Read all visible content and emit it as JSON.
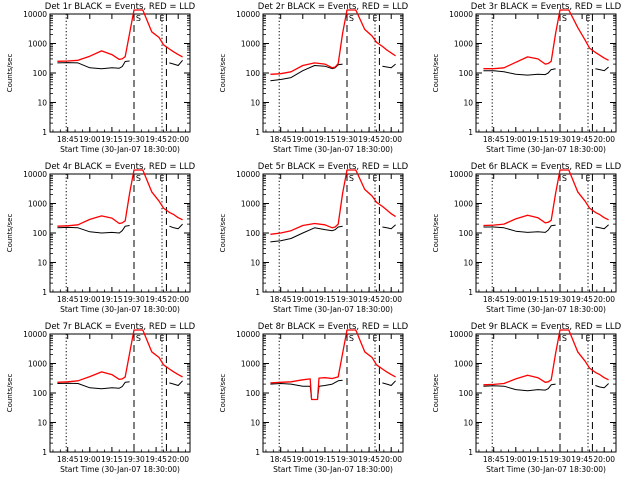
{
  "figure": {
    "xlabel": "Start Time (30-Jan-07 18:30:00)",
    "ylabel": "Counts/sec",
    "x_ticks": [
      "18:45",
      "19:00",
      "19:15",
      "19:30",
      "19:45",
      "20:00"
    ],
    "y_ticks": [
      "1",
      "10",
      "100",
      "1000",
      "10000"
    ],
    "colors": {
      "events": "#000000",
      "lld": "#ff0000",
      "axes": "#000000"
    }
  },
  "chart_data": [
    {
      "type": "line",
      "title": "Det 1r BLACK = Events, RED = LLD",
      "x": [
        "18:38",
        "18:45",
        "18:52",
        "19:00",
        "19:08",
        "19:15",
        "19:20",
        "19:22",
        "19:24",
        "19:27",
        "19:30",
        "19:32",
        "19:36",
        "19:42",
        "19:47",
        "19:50",
        "19:54",
        "19:57",
        "20:00",
        "20:03"
      ],
      "x_range": [
        "18:33",
        "20:08"
      ],
      "ylim": [
        1,
        10000
      ],
      "yscale": "log",
      "series": [
        {
          "name": "Events",
          "values": [
            220,
            225,
            220,
            150,
            140,
            150,
            145,
            165,
            245,
            255,
            null,
            null,
            null,
            null,
            null,
            null,
            220,
            200,
            180,
            270
          ]
        },
        {
          "name": "LLD",
          "values": [
            250,
            255,
            270,
            370,
            560,
            420,
            290,
            300,
            360,
            2200,
            15000,
            15000,
            15000,
            2500,
            1600,
            900,
            650,
            520,
            420,
            350
          ]
        }
      ],
      "vlines": [
        {
          "x": "18:44",
          "style": "dotted"
        },
        {
          "x": "19:30",
          "style": "dashed"
        },
        {
          "x": "19:49",
          "style": "dotted"
        },
        {
          "x": "19:52",
          "style": "dashed"
        }
      ],
      "markers": [
        {
          "x": "19:33",
          "label": "S"
        },
        {
          "x": "19:49",
          "label": "E"
        }
      ]
    },
    {
      "type": "line",
      "title": "Det 2r BLACK = Events, RED = LLD",
      "x": [
        "18:38",
        "18:45",
        "18:52",
        "19:00",
        "19:08",
        "19:15",
        "19:20",
        "19:22",
        "19:24",
        "19:27",
        "19:30",
        "19:32",
        "19:36",
        "19:42",
        "19:47",
        "19:50",
        "19:54",
        "19:57",
        "20:00",
        "20:03"
      ],
      "x_range": [
        "18:33",
        "20:08"
      ],
      "ylim": [
        1,
        10000
      ],
      "yscale": "log",
      "series": [
        {
          "name": "Events",
          "values": [
            55,
            60,
            70,
            120,
            180,
            170,
            140,
            150,
            190,
            200,
            null,
            null,
            null,
            null,
            null,
            null,
            170,
            160,
            150,
            200
          ]
        },
        {
          "name": "LLD",
          "values": [
            90,
            95,
            110,
            180,
            220,
            200,
            150,
            160,
            210,
            2200,
            15000,
            15000,
            15000,
            3000,
            1800,
            1100,
            800,
            600,
            480,
            380
          ]
        }
      ],
      "vlines": [
        {
          "x": "18:44",
          "style": "dotted"
        },
        {
          "x": "19:30",
          "style": "dashed"
        },
        {
          "x": "19:49",
          "style": "dotted"
        },
        {
          "x": "19:52",
          "style": "dashed"
        }
      ],
      "markers": [
        {
          "x": "19:33",
          "label": "S"
        },
        {
          "x": "19:49",
          "label": "E"
        }
      ]
    },
    {
      "type": "line",
      "title": "Det 3r BLACK = Events, RED = LLD",
      "x": [
        "18:38",
        "18:45",
        "18:52",
        "19:00",
        "19:08",
        "19:15",
        "19:20",
        "19:22",
        "19:24",
        "19:27",
        "19:30",
        "19:32",
        "19:36",
        "19:42",
        "19:47",
        "19:50",
        "19:54",
        "19:57",
        "20:00",
        "20:03"
      ],
      "x_range": [
        "18:33",
        "20:08"
      ],
      "ylim": [
        1,
        10000
      ],
      "yscale": "log",
      "series": [
        {
          "name": "Events",
          "values": [
            120,
            120,
            110,
            90,
            85,
            90,
            88,
            100,
            130,
            140,
            null,
            null,
            null,
            null,
            null,
            null,
            140,
            130,
            120,
            160
          ]
        },
        {
          "name": "LLD",
          "values": [
            140,
            140,
            150,
            230,
            350,
            300,
            200,
            210,
            250,
            2200,
            15000,
            15000,
            15000,
            3500,
            1300,
            700,
            500,
            400,
            320,
            270
          ]
        }
      ],
      "vlines": [
        {
          "x": "18:44",
          "style": "dotted"
        },
        {
          "x": "19:30",
          "style": "dashed"
        },
        {
          "x": "19:49",
          "style": "dotted"
        },
        {
          "x": "19:52",
          "style": "dashed"
        }
      ],
      "markers": [
        {
          "x": "19:33",
          "label": "S"
        },
        {
          "x": "19:49",
          "label": "E"
        }
      ]
    },
    {
      "type": "line",
      "title": "Det 4r BLACK = Events, RED = LLD",
      "x": [
        "18:38",
        "18:45",
        "18:52",
        "19:00",
        "19:08",
        "19:15",
        "19:20",
        "19:22",
        "19:24",
        "19:27",
        "19:30",
        "19:32",
        "19:36",
        "19:42",
        "19:47",
        "19:50",
        "19:54",
        "19:57",
        "20:00",
        "20:03"
      ],
      "x_range": [
        "18:33",
        "20:08"
      ],
      "ylim": [
        1,
        10000
      ],
      "yscale": "log",
      "series": [
        {
          "name": "Events",
          "values": [
            150,
            155,
            150,
            110,
            100,
            105,
            100,
            120,
            170,
            180,
            null,
            null,
            null,
            null,
            null,
            null,
            170,
            150,
            140,
            200
          ]
        },
        {
          "name": "LLD",
          "values": [
            170,
            175,
            190,
            290,
            380,
            320,
            210,
            220,
            260,
            2200,
            15000,
            15000,
            15000,
            2500,
            1200,
            700,
            500,
            420,
            330,
            280
          ]
        }
      ],
      "vlines": [
        {
          "x": "18:44",
          "style": "dotted"
        },
        {
          "x": "19:30",
          "style": "dashed"
        },
        {
          "x": "19:49",
          "style": "dotted"
        },
        {
          "x": "19:52",
          "style": "dashed"
        }
      ],
      "markers": [
        {
          "x": "19:33",
          "label": "S"
        },
        {
          "x": "19:49",
          "label": "E"
        }
      ]
    },
    {
      "type": "line",
      "title": "Det 5r BLACK = Events, RED = LLD",
      "x": [
        "18:38",
        "18:45",
        "18:52",
        "19:00",
        "19:08",
        "19:15",
        "19:20",
        "19:22",
        "19:24",
        "19:27",
        "19:30",
        "19:32",
        "19:36",
        "19:42",
        "19:47",
        "19:50",
        "19:54",
        "19:57",
        "20:00",
        "20:03"
      ],
      "x_range": [
        "18:33",
        "20:08"
      ],
      "ylim": [
        1,
        10000
      ],
      "yscale": "log",
      "series": [
        {
          "name": "Events",
          "values": [
            50,
            55,
            65,
            100,
            150,
            130,
            120,
            130,
            160,
            170,
            null,
            null,
            null,
            null,
            null,
            null,
            160,
            150,
            140,
            190
          ]
        },
        {
          "name": "LLD",
          "values": [
            90,
            100,
            120,
            180,
            210,
            190,
            150,
            160,
            200,
            2200,
            15000,
            15000,
            15000,
            3000,
            1800,
            1100,
            800,
            600,
            450,
            360
          ]
        }
      ],
      "vlines": [
        {
          "x": "18:44",
          "style": "dotted"
        },
        {
          "x": "19:30",
          "style": "dashed"
        },
        {
          "x": "19:49",
          "style": "dotted"
        },
        {
          "x": "19:52",
          "style": "dashed"
        }
      ],
      "markers": [
        {
          "x": "19:33",
          "label": "S"
        },
        {
          "x": "19:49",
          "label": "E"
        }
      ]
    },
    {
      "type": "line",
      "title": "Det 6r BLACK = Events, RED = LLD",
      "x": [
        "18:38",
        "18:45",
        "18:52",
        "19:00",
        "19:08",
        "19:15",
        "19:20",
        "19:22",
        "19:24",
        "19:27",
        "19:30",
        "19:32",
        "19:36",
        "19:42",
        "19:47",
        "19:50",
        "19:54",
        "19:57",
        "20:00",
        "20:03"
      ],
      "x_range": [
        "18:33",
        "20:08"
      ],
      "ylim": [
        1,
        10000
      ],
      "yscale": "log",
      "series": [
        {
          "name": "Events",
          "values": [
            160,
            160,
            150,
            115,
            105,
            110,
            105,
            125,
            175,
            185,
            null,
            null,
            null,
            null,
            null,
            null,
            160,
            150,
            140,
            190
          ]
        },
        {
          "name": "LLD",
          "values": [
            180,
            185,
            200,
            300,
            400,
            330,
            220,
            230,
            270,
            2200,
            15000,
            15000,
            15000,
            2500,
            1200,
            700,
            500,
            420,
            330,
            280
          ]
        }
      ],
      "vlines": [
        {
          "x": "18:44",
          "style": "dotted"
        },
        {
          "x": "19:30",
          "style": "dashed"
        },
        {
          "x": "19:49",
          "style": "dotted"
        },
        {
          "x": "19:52",
          "style": "dashed"
        }
      ],
      "markers": [
        {
          "x": "19:33",
          "label": "S"
        },
        {
          "x": "19:49",
          "label": "E"
        }
      ]
    },
    {
      "type": "line",
      "title": "Det 7r BLACK = Events, RED = LLD",
      "x": [
        "18:38",
        "18:45",
        "18:52",
        "19:00",
        "19:08",
        "19:15",
        "19:20",
        "19:22",
        "19:24",
        "19:27",
        "19:30",
        "19:32",
        "19:36",
        "19:42",
        "19:47",
        "19:50",
        "19:54",
        "19:57",
        "20:00",
        "20:03"
      ],
      "x_range": [
        "18:33",
        "20:08"
      ],
      "ylim": [
        1,
        10000
      ],
      "yscale": "log",
      "series": [
        {
          "name": "Events",
          "values": [
            210,
            215,
            210,
            150,
            140,
            150,
            145,
            165,
            230,
            240,
            null,
            null,
            null,
            null,
            null,
            null,
            220,
            200,
            180,
            260
          ]
        },
        {
          "name": "LLD",
          "values": [
            230,
            240,
            260,
            360,
            520,
            420,
            290,
            300,
            350,
            2200,
            15000,
            15000,
            15000,
            2500,
            1600,
            900,
            650,
            520,
            420,
            350
          ]
        }
      ],
      "vlines": [
        {
          "x": "18:44",
          "style": "dotted"
        },
        {
          "x": "19:30",
          "style": "dashed"
        },
        {
          "x": "19:49",
          "style": "dotted"
        },
        {
          "x": "19:52",
          "style": "dashed"
        }
      ],
      "markers": [
        {
          "x": "19:33",
          "label": "S"
        },
        {
          "x": "19:49",
          "label": "E"
        }
      ]
    },
    {
      "type": "line",
      "title": "Det 8r BLACK = Events, RED = LLD",
      "x": [
        "18:38",
        "18:45",
        "18:52",
        "19:00",
        "19:05",
        "19:06",
        "19:10",
        "19:11",
        "19:15",
        "19:20",
        "19:24",
        "19:27",
        "19:30",
        "19:33",
        "19:36",
        "19:42",
        "19:47",
        "19:50",
        "19:54",
        "19:57",
        "20:00",
        "20:03"
      ],
      "x_range": [
        "18:33",
        "20:08"
      ],
      "ylim": [
        1,
        10000
      ],
      "yscale": "log",
      "series": [
        {
          "name": "Events",
          "values": [
            200,
            210,
            200,
            170,
            170,
            60,
            60,
            170,
            180,
            200,
            260,
            270,
            null,
            null,
            null,
            null,
            null,
            null,
            220,
            200,
            180,
            260
          ]
        },
        {
          "name": "LLD",
          "values": [
            220,
            230,
            240,
            280,
            300,
            60,
            60,
            320,
            330,
            310,
            350,
            2200,
            15000,
            15000,
            15000,
            2500,
            1600,
            900,
            650,
            520,
            420,
            350
          ]
        }
      ],
      "vlines": [
        {
          "x": "18:44",
          "style": "dotted"
        },
        {
          "x": "19:30",
          "style": "dashed"
        },
        {
          "x": "19:49",
          "style": "dotted"
        },
        {
          "x": "19:52",
          "style": "dashed"
        }
      ],
      "markers": [
        {
          "x": "19:33",
          "label": "S"
        },
        {
          "x": "19:49",
          "label": "E"
        }
      ]
    },
    {
      "type": "line",
      "title": "Det 9r BLACK = Events, RED = LLD",
      "x": [
        "18:38",
        "18:45",
        "18:52",
        "19:00",
        "19:08",
        "19:15",
        "19:20",
        "19:22",
        "19:24",
        "19:27",
        "19:30",
        "19:32",
        "19:36",
        "19:42",
        "19:47",
        "19:50",
        "19:54",
        "19:57",
        "20:00",
        "20:03"
      ],
      "x_range": [
        "18:33",
        "20:08"
      ],
      "ylim": [
        1,
        10000
      ],
      "yscale": "log",
      "series": [
        {
          "name": "Events",
          "values": [
            170,
            175,
            170,
            130,
            120,
            130,
            125,
            140,
            190,
            200,
            null,
            null,
            null,
            null,
            null,
            null,
            180,
            160,
            150,
            210
          ]
        },
        {
          "name": "LLD",
          "values": [
            190,
            195,
            210,
            300,
            400,
            330,
            230,
            240,
            280,
            2200,
            15000,
            15000,
            15000,
            2500,
            1200,
            700,
            500,
            420,
            330,
            280
          ]
        }
      ],
      "vlines": [
        {
          "x": "18:44",
          "style": "dotted"
        },
        {
          "x": "19:30",
          "style": "dashed"
        },
        {
          "x": "19:49",
          "style": "dotted"
        },
        {
          "x": "19:52",
          "style": "dashed"
        }
      ],
      "markers": [
        {
          "x": "19:33",
          "label": "S"
        },
        {
          "x": "19:49",
          "label": "E"
        }
      ]
    }
  ]
}
